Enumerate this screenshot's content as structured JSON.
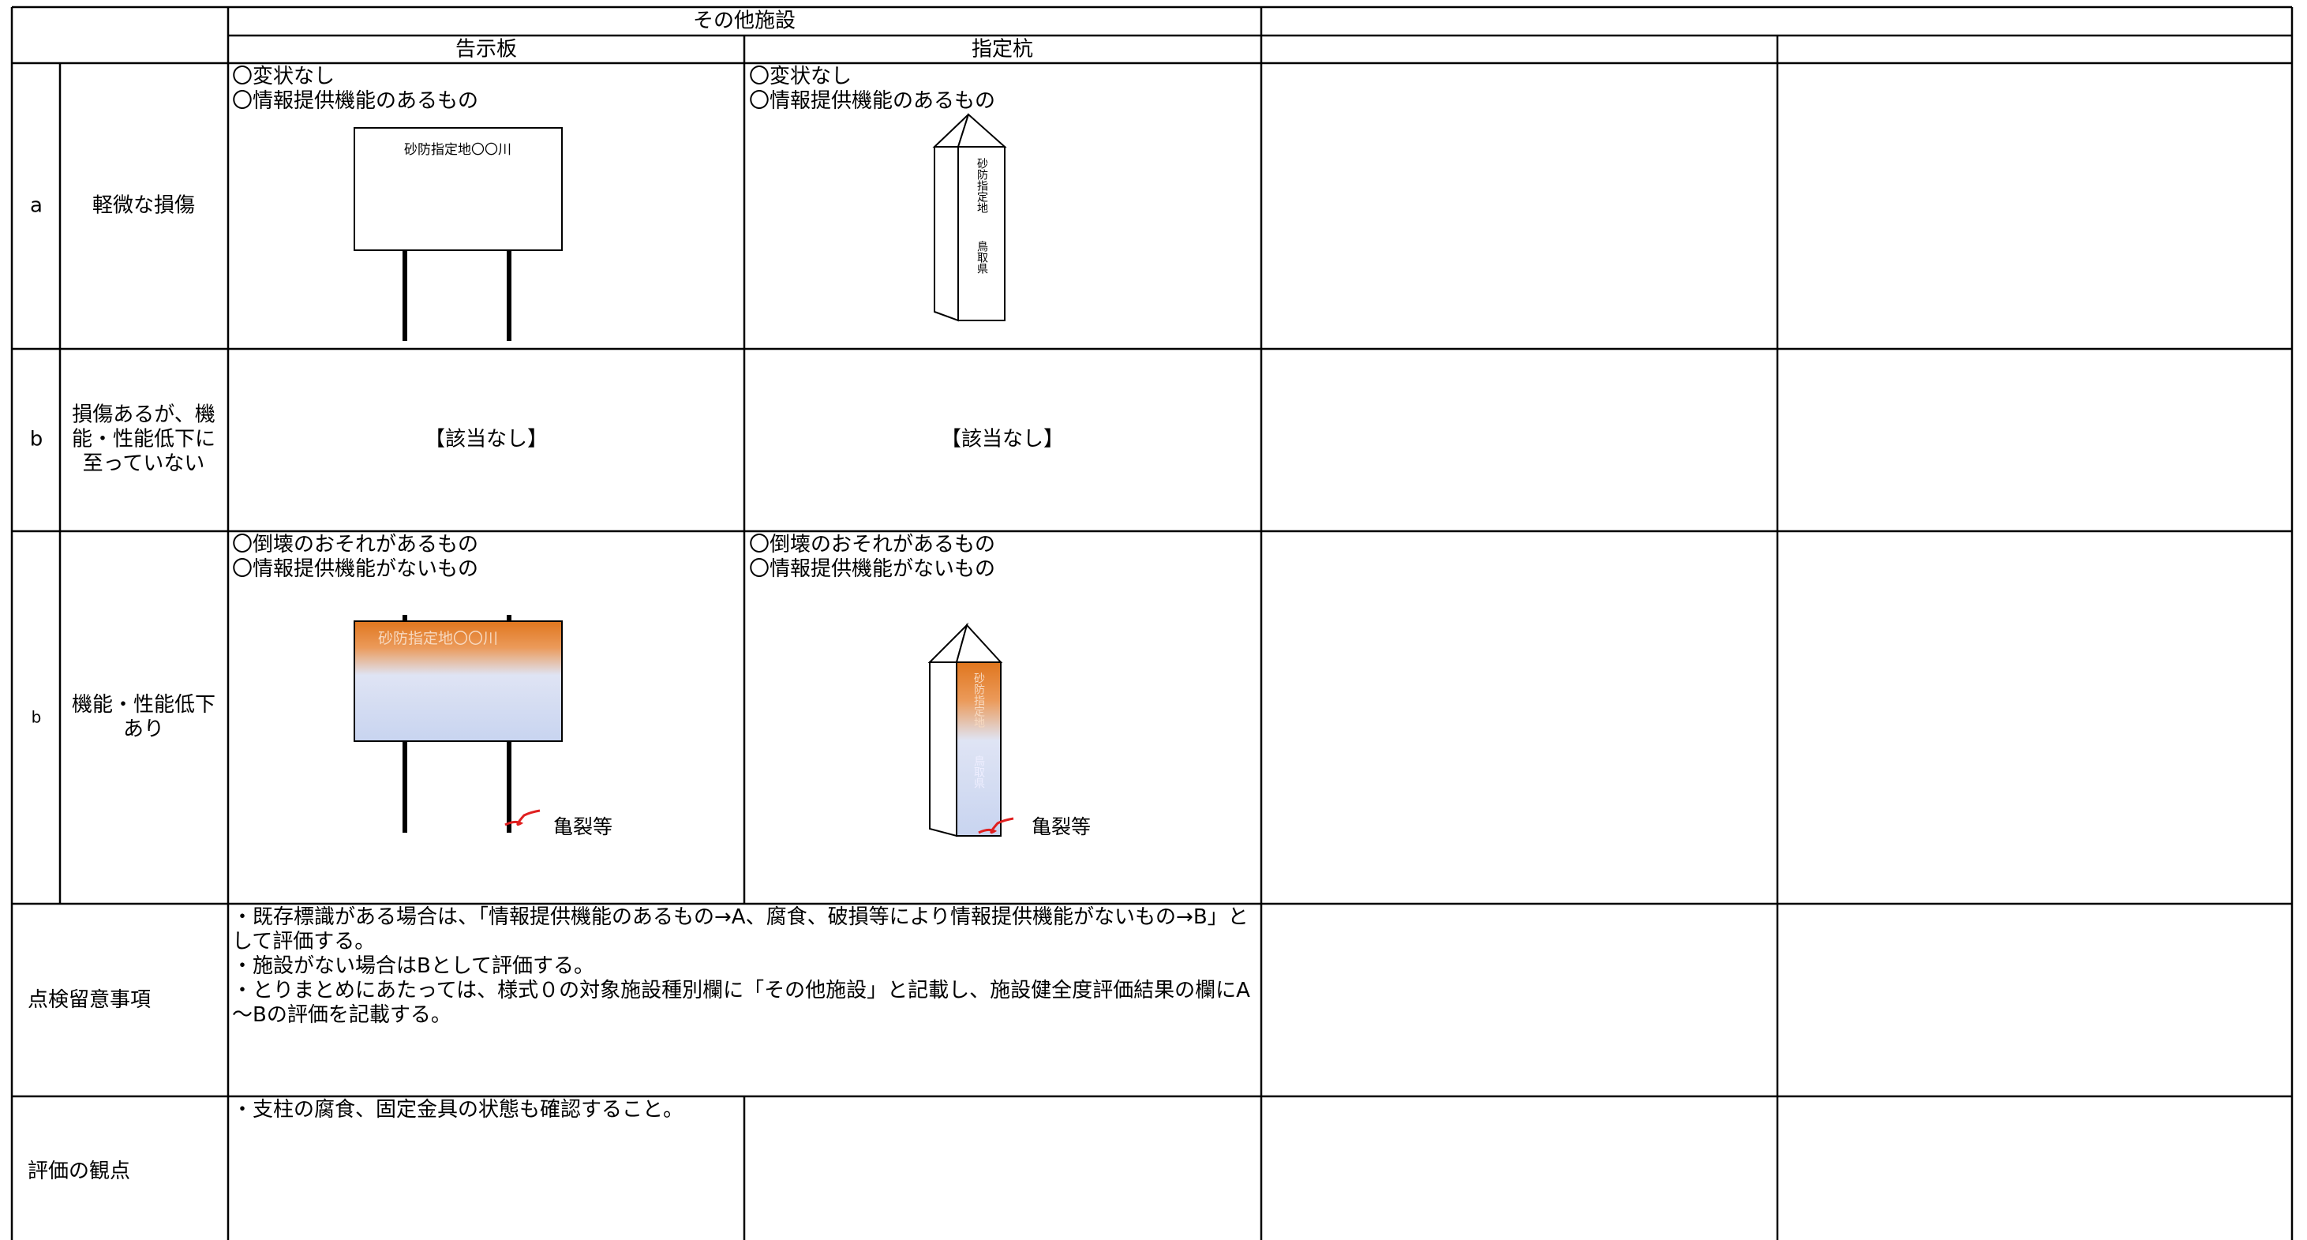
{
  "header": {
    "group": "その他施設",
    "columns": [
      "告示板",
      "指定杭"
    ]
  },
  "rows": [
    {
      "rank": "a",
      "label": "軽微な損傷",
      "cells": [
        [
          "〇変状なし",
          "〇情報提供機能のあるもの"
        ],
        [
          "〇変状なし",
          "〇情報提供機能のあるもの"
        ]
      ]
    },
    {
      "rank": "b",
      "label": "損傷あるが、機能・性能低下に至っていない",
      "cells": [
        [
          "【該当なし】"
        ],
        [
          "【該当なし】"
        ]
      ]
    },
    {
      "rank": "b",
      "label": "機能・性能低下あり",
      "cells": [
        [
          "〇倒壊のおそれがあるもの",
          "〇情報提供機能がないもの"
        ],
        [
          "〇倒壊のおそれがあるもの",
          "〇情報提供機能がないもの"
        ]
      ]
    }
  ],
  "illustrations": {
    "sign_text": "砂防指定地〇〇川",
    "post_text": [
      "砂防指定地",
      "鳥取県"
    ],
    "crack_label": "亀裂等"
  },
  "notes": {
    "label": "点検留意事項",
    "lines": [
      "・既存標識がある場合は、「情報提供機能のあるもの→A、腐食、破損等により情報提供機能がないもの→B」として評価する。",
      "・施設がない場合はBとして評価する。",
      "・とりまとめにあたっては、様式０の対象施設種別欄に「その他施設」と記載し、施設健全度評価結果の欄にA～Bの評価を記載する。"
    ]
  },
  "viewpoint": {
    "label": "評価の観点",
    "lines": [
      "・支柱の腐食、固定金具の状態も確認すること。"
    ]
  }
}
